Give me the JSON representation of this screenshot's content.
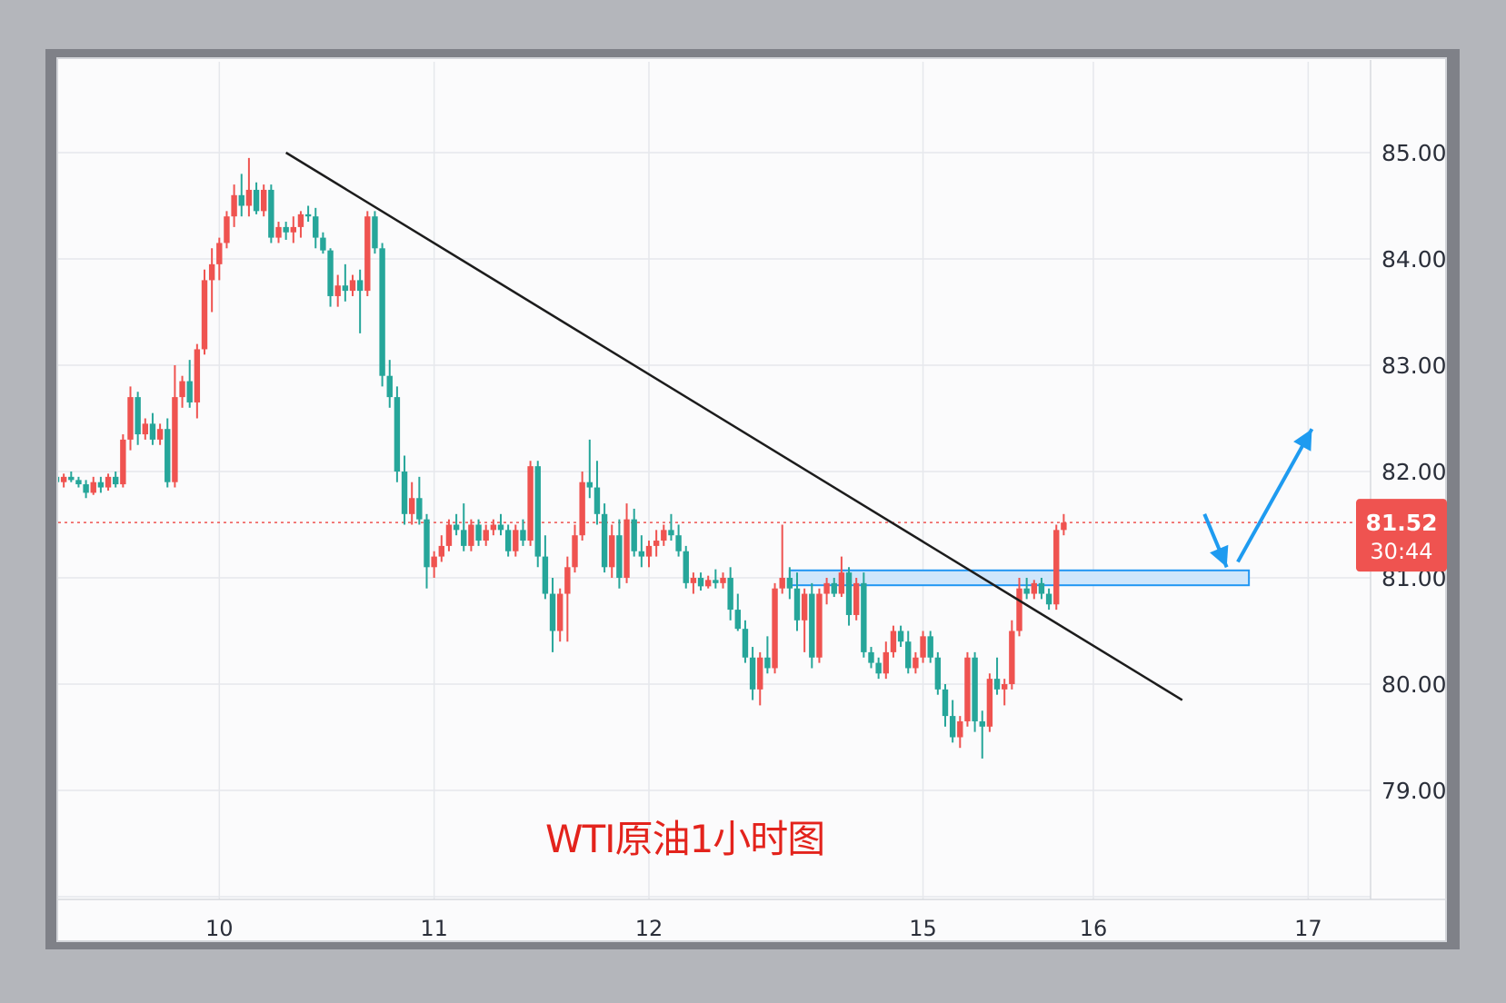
{
  "chart_data": {
    "type": "candlestick",
    "title": "WTI原油1小时图",
    "ylim": [
      78,
      86
    ],
    "y_ticks": [
      "79.00",
      "80.00",
      "81.00",
      "82.00",
      "83.00",
      "84.00",
      "85.00"
    ],
    "x_ticks": [
      {
        "label": "10",
        "i": 22
      },
      {
        "label": "11",
        "i": 51
      },
      {
        "label": "12",
        "i": 80
      },
      {
        "label": "15",
        "i": 117
      },
      {
        "label": "16",
        "i": 140
      },
      {
        "label": "17",
        "i": 169
      }
    ],
    "n_slots": 175,
    "last_price": {
      "value": "81.52",
      "countdown": "30:44",
      "price": 81.52
    },
    "trendline": {
      "from": {
        "i": 31,
        "price": 85.0
      },
      "to": {
        "i": 152,
        "price": 79.85
      }
    },
    "support_zone": {
      "i_from": 99,
      "i_to": 161,
      "low": 80.93,
      "high": 81.07
    },
    "arrows": [
      {
        "from": {
          "i": 155,
          "price": 81.6
        },
        "to": {
          "i": 158,
          "price": 81.1
        }
      },
      {
        "from": {
          "i": 159.5,
          "price": 81.15
        },
        "to": {
          "i": 169.5,
          "price": 82.4
        }
      }
    ],
    "candles_ohlc": [
      [
        81.95,
        82.05,
        81.88,
        81.9
      ],
      [
        81.9,
        81.98,
        81.85,
        81.95
      ],
      [
        81.95,
        82.0,
        81.9,
        81.92
      ],
      [
        81.92,
        81.95,
        81.85,
        81.88
      ],
      [
        81.88,
        81.92,
        81.75,
        81.8
      ],
      [
        81.8,
        81.95,
        81.78,
        81.9
      ],
      [
        81.9,
        81.95,
        81.8,
        81.85
      ],
      [
        81.85,
        81.98,
        81.82,
        81.95
      ],
      [
        81.95,
        82.0,
        81.85,
        81.88
      ],
      [
        81.88,
        82.35,
        81.85,
        82.3
      ],
      [
        82.3,
        82.8,
        82.2,
        82.7
      ],
      [
        82.7,
        82.75,
        82.25,
        82.35
      ],
      [
        82.35,
        82.5,
        82.3,
        82.45
      ],
      [
        82.45,
        82.55,
        82.25,
        82.3
      ],
      [
        82.3,
        82.45,
        82.25,
        82.4
      ],
      [
        82.4,
        82.5,
        81.85,
        81.9
      ],
      [
        81.9,
        83.0,
        81.85,
        82.7
      ],
      [
        82.7,
        82.9,
        82.6,
        82.85
      ],
      [
        82.85,
        83.05,
        82.6,
        82.65
      ],
      [
        82.65,
        83.2,
        82.5,
        83.15
      ],
      [
        83.15,
        83.9,
        83.1,
        83.8
      ],
      [
        83.8,
        84.1,
        83.5,
        83.95
      ],
      [
        83.95,
        84.2,
        83.8,
        84.15
      ],
      [
        84.15,
        84.45,
        84.1,
        84.4
      ],
      [
        84.4,
        84.7,
        84.3,
        84.6
      ],
      [
        84.6,
        84.8,
        84.4,
        84.5
      ],
      [
        84.5,
        84.95,
        84.4,
        84.65
      ],
      [
        84.65,
        84.72,
        84.42,
        84.45
      ],
      [
        84.45,
        84.7,
        84.4,
        84.65
      ],
      [
        84.65,
        84.7,
        84.15,
        84.2
      ],
      [
        84.2,
        84.35,
        84.15,
        84.3
      ],
      [
        84.3,
        84.35,
        84.18,
        84.25
      ],
      [
        84.25,
        84.4,
        84.15,
        84.3
      ],
      [
        84.3,
        84.45,
        84.2,
        84.42
      ],
      [
        84.42,
        84.5,
        84.35,
        84.4
      ],
      [
        84.4,
        84.48,
        84.1,
        84.2
      ],
      [
        84.2,
        84.25,
        84.05,
        84.08
      ],
      [
        84.08,
        84.1,
        83.55,
        83.65
      ],
      [
        83.65,
        83.85,
        83.55,
        83.75
      ],
      [
        83.75,
        83.95,
        83.6,
        83.7
      ],
      [
        83.7,
        83.85,
        83.65,
        83.8
      ],
      [
        83.8,
        83.9,
        83.3,
        83.7
      ],
      [
        83.7,
        84.45,
        83.65,
        84.4
      ],
      [
        84.4,
        84.45,
        84.05,
        84.1
      ],
      [
        84.1,
        84.15,
        82.8,
        82.9
      ],
      [
        82.9,
        83.05,
        82.6,
        82.7
      ],
      [
        82.7,
        82.8,
        81.9,
        82.0
      ],
      [
        82.0,
        82.15,
        81.5,
        81.6
      ],
      [
        81.6,
        81.9,
        81.5,
        81.75
      ],
      [
        81.75,
        81.95,
        81.5,
        81.55
      ],
      [
        81.55,
        81.6,
        80.9,
        81.1
      ],
      [
        81.1,
        81.25,
        81.0,
        81.2
      ],
      [
        81.2,
        81.4,
        81.15,
        81.3
      ],
      [
        81.3,
        81.55,
        81.25,
        81.5
      ],
      [
        81.5,
        81.6,
        81.4,
        81.45
      ],
      [
        81.45,
        81.7,
        81.25,
        81.3
      ],
      [
        81.3,
        81.55,
        81.25,
        81.5
      ],
      [
        81.5,
        81.55,
        81.3,
        81.35
      ],
      [
        81.35,
        81.5,
        81.3,
        81.45
      ],
      [
        81.45,
        81.55,
        81.4,
        81.5
      ],
      [
        81.5,
        81.6,
        81.4,
        81.45
      ],
      [
        81.45,
        81.5,
        81.2,
        81.25
      ],
      [
        81.25,
        81.5,
        81.2,
        81.45
      ],
      [
        81.45,
        81.55,
        81.3,
        81.35
      ],
      [
        81.35,
        82.1,
        81.3,
        82.05
      ],
      [
        82.05,
        82.1,
        81.1,
        81.2
      ],
      [
        81.2,
        81.4,
        80.8,
        80.85
      ],
      [
        80.85,
        81.0,
        80.3,
        80.5
      ],
      [
        80.5,
        80.9,
        80.4,
        80.85
      ],
      [
        80.85,
        81.2,
        80.4,
        81.1
      ],
      [
        81.1,
        81.5,
        81.05,
        81.4
      ],
      [
        81.4,
        82.0,
        81.35,
        81.9
      ],
      [
        81.9,
        82.3,
        81.75,
        81.85
      ],
      [
        81.85,
        82.1,
        81.5,
        81.6
      ],
      [
        81.6,
        81.7,
        81.05,
        81.1
      ],
      [
        81.1,
        81.5,
        81.0,
        81.4
      ],
      [
        81.4,
        81.55,
        80.9,
        81.0
      ],
      [
        81.0,
        81.7,
        80.95,
        81.55
      ],
      [
        81.55,
        81.65,
        81.2,
        81.25
      ],
      [
        81.25,
        81.4,
        81.1,
        81.2
      ],
      [
        81.2,
        81.35,
        81.1,
        81.3
      ],
      [
        81.3,
        81.45,
        81.2,
        81.35
      ],
      [
        81.35,
        81.5,
        81.3,
        81.45
      ],
      [
        81.45,
        81.6,
        81.35,
        81.4
      ],
      [
        81.4,
        81.5,
        81.2,
        81.25
      ],
      [
        81.25,
        81.3,
        80.9,
        80.95
      ],
      [
        80.95,
        81.05,
        80.85,
        81.0
      ],
      [
        81.0,
        81.05,
        80.88,
        80.92
      ],
      [
        80.92,
        81.02,
        80.9,
        80.98
      ],
      [
        80.98,
        81.08,
        80.9,
        80.95
      ],
      [
        80.95,
        81.05,
        80.9,
        81.0
      ],
      [
        81.0,
        81.1,
        80.6,
        80.7
      ],
      [
        80.7,
        80.85,
        80.5,
        80.52
      ],
      [
        80.52,
        80.6,
        80.2,
        80.25
      ],
      [
        80.25,
        80.35,
        79.85,
        79.95
      ],
      [
        79.95,
        80.3,
        79.8,
        80.25
      ],
      [
        80.25,
        80.45,
        80.1,
        80.15
      ],
      [
        80.15,
        80.95,
        80.1,
        80.9
      ],
      [
        80.9,
        81.5,
        80.85,
        81.0
      ],
      [
        81.0,
        81.1,
        80.8,
        80.9
      ],
      [
        80.9,
        81.05,
        80.5,
        80.6
      ],
      [
        80.6,
        80.9,
        80.3,
        80.85
      ],
      [
        80.85,
        80.95,
        80.15,
        80.25
      ],
      [
        80.25,
        80.9,
        80.2,
        80.85
      ],
      [
        80.85,
        81.0,
        80.75,
        80.95
      ],
      [
        80.95,
        81.0,
        80.82,
        80.85
      ],
      [
        80.85,
        81.2,
        80.82,
        81.05
      ],
      [
        81.05,
        81.1,
        80.55,
        80.65
      ],
      [
        80.65,
        81.0,
        80.6,
        80.95
      ],
      [
        80.95,
        81.05,
        80.25,
        80.3
      ],
      [
        80.3,
        80.35,
        80.15,
        80.2
      ],
      [
        80.2,
        80.25,
        80.05,
        80.1
      ],
      [
        80.1,
        80.4,
        80.05,
        80.3
      ],
      [
        80.3,
        80.55,
        80.25,
        80.5
      ],
      [
        80.5,
        80.55,
        80.35,
        80.4
      ],
      [
        80.4,
        80.5,
        80.1,
        80.15
      ],
      [
        80.15,
        80.3,
        80.1,
        80.25
      ],
      [
        80.25,
        80.5,
        80.2,
        80.45
      ],
      [
        80.45,
        80.5,
        80.2,
        80.25
      ],
      [
        80.25,
        80.3,
        79.9,
        79.95
      ],
      [
        79.95,
        80.0,
        79.6,
        79.7
      ],
      [
        79.7,
        79.85,
        79.45,
        79.5
      ],
      [
        79.5,
        79.7,
        79.4,
        79.65
      ],
      [
        79.65,
        80.3,
        79.6,
        80.25
      ],
      [
        80.25,
        80.3,
        79.55,
        79.65
      ],
      [
        79.65,
        79.75,
        79.3,
        79.6
      ],
      [
        79.6,
        80.1,
        79.55,
        80.05
      ],
      [
        80.05,
        80.25,
        79.9,
        79.95
      ],
      [
        79.95,
        80.05,
        79.8,
        80.0
      ],
      [
        80.0,
        80.6,
        79.95,
        80.5
      ],
      [
        80.5,
        81.0,
        80.45,
        80.9
      ],
      [
        80.9,
        81.0,
        80.8,
        80.85
      ],
      [
        80.85,
        80.98,
        80.8,
        80.95
      ],
      [
        80.95,
        81.0,
        80.8,
        80.85
      ],
      [
        80.85,
        80.9,
        80.7,
        80.75
      ],
      [
        80.75,
        81.5,
        80.7,
        81.45
      ],
      [
        81.45,
        81.6,
        81.4,
        81.52
      ]
    ]
  }
}
